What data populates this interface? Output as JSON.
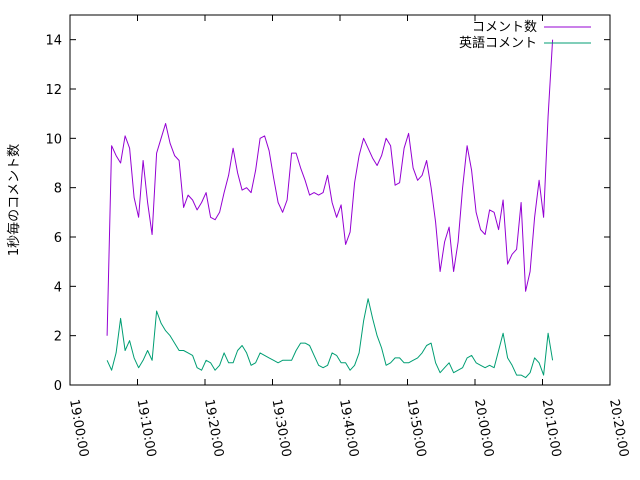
{
  "chart_data": {
    "type": "line",
    "title": "",
    "xlabel": "",
    "ylabel": "1秒毎のコメント数",
    "xlim": [
      "19:00:00",
      "20:20:00"
    ],
    "ylim": [
      0,
      15
    ],
    "x_ticks": [
      "19:00:00",
      "19:10:00",
      "19:20:00",
      "19:30:00",
      "19:40:00",
      "19:50:00",
      "20:00:00",
      "20:10:00",
      "20:20:00"
    ],
    "y_ticks": [
      0,
      2,
      4,
      6,
      8,
      10,
      12,
      14
    ],
    "grid": false,
    "legend_position": "top-right",
    "series": [
      {
        "name": "コメント数",
        "color": "#9400d3",
        "points": [
          [
            "19:05:30",
            2.0
          ],
          [
            "19:06:10",
            9.7
          ],
          [
            "19:06:50",
            9.3
          ],
          [
            "19:07:30",
            9.0
          ],
          [
            "19:08:10",
            10.1
          ],
          [
            "19:08:50",
            9.6
          ],
          [
            "19:09:30",
            7.6
          ],
          [
            "19:10:10",
            6.8
          ],
          [
            "19:10:50",
            9.1
          ],
          [
            "19:11:30",
            7.4
          ],
          [
            "19:12:10",
            6.1
          ],
          [
            "19:12:50",
            9.4
          ],
          [
            "19:13:30",
            10.0
          ],
          [
            "19:14:10",
            10.6
          ],
          [
            "19:14:50",
            9.8
          ],
          [
            "19:15:30",
            9.3
          ],
          [
            "19:16:10",
            9.1
          ],
          [
            "19:16:50",
            7.2
          ],
          [
            "19:17:30",
            7.7
          ],
          [
            "19:18:10",
            7.5
          ],
          [
            "19:18:50",
            7.1
          ],
          [
            "19:19:30",
            7.4
          ],
          [
            "19:20:10",
            7.8
          ],
          [
            "19:20:50",
            6.8
          ],
          [
            "19:21:30",
            6.7
          ],
          [
            "19:22:10",
            7.0
          ],
          [
            "19:22:50",
            7.8
          ],
          [
            "19:23:30",
            8.5
          ],
          [
            "19:24:10",
            9.6
          ],
          [
            "19:24:50",
            8.6
          ],
          [
            "19:25:30",
            7.9
          ],
          [
            "19:26:10",
            8.0
          ],
          [
            "19:26:50",
            7.8
          ],
          [
            "19:27:30",
            8.7
          ],
          [
            "19:28:10",
            10.0
          ],
          [
            "19:28:50",
            10.1
          ],
          [
            "19:29:30",
            9.5
          ],
          [
            "19:30:10",
            8.4
          ],
          [
            "19:30:50",
            7.4
          ],
          [
            "19:31:30",
            7.0
          ],
          [
            "19:32:10",
            7.5
          ],
          [
            "19:32:50",
            9.4
          ],
          [
            "19:33:30",
            9.4
          ],
          [
            "19:34:10",
            8.8
          ],
          [
            "19:34:50",
            8.3
          ],
          [
            "19:35:30",
            7.7
          ],
          [
            "19:36:10",
            7.8
          ],
          [
            "19:36:50",
            7.7
          ],
          [
            "19:37:30",
            7.8
          ],
          [
            "19:38:10",
            8.5
          ],
          [
            "19:38:50",
            7.4
          ],
          [
            "19:39:30",
            6.8
          ],
          [
            "19:40:10",
            7.3
          ],
          [
            "19:40:50",
            5.7
          ],
          [
            "19:41:30",
            6.2
          ],
          [
            "19:42:10",
            8.2
          ],
          [
            "19:42:50",
            9.3
          ],
          [
            "19:43:30",
            10.0
          ],
          [
            "19:44:10",
            9.6
          ],
          [
            "19:44:50",
            9.2
          ],
          [
            "19:45:30",
            8.9
          ],
          [
            "19:46:10",
            9.3
          ],
          [
            "19:46:50",
            10.0
          ],
          [
            "19:47:30",
            9.7
          ],
          [
            "19:48:10",
            8.1
          ],
          [
            "19:48:50",
            8.2
          ],
          [
            "19:49:30",
            9.6
          ],
          [
            "19:50:10",
            10.2
          ],
          [
            "19:50:50",
            8.8
          ],
          [
            "19:51:30",
            8.3
          ],
          [
            "19:52:10",
            8.5
          ],
          [
            "19:52:50",
            9.1
          ],
          [
            "19:53:30",
            8.0
          ],
          [
            "19:54:10",
            6.6
          ],
          [
            "19:54:50",
            4.6
          ],
          [
            "19:55:30",
            5.8
          ],
          [
            "19:56:10",
            6.4
          ],
          [
            "19:56:50",
            4.6
          ],
          [
            "19:57:30",
            5.8
          ],
          [
            "19:58:10",
            8.0
          ],
          [
            "19:58:50",
            9.7
          ],
          [
            "19:59:30",
            8.7
          ],
          [
            "20:00:10",
            7.0
          ],
          [
            "20:00:50",
            6.3
          ],
          [
            "20:01:30",
            6.1
          ],
          [
            "20:02:10",
            7.1
          ],
          [
            "20:02:50",
            7.0
          ],
          [
            "20:03:30",
            6.3
          ],
          [
            "20:04:10",
            7.5
          ],
          [
            "20:04:50",
            4.9
          ],
          [
            "20:05:30",
            5.3
          ],
          [
            "20:06:10",
            5.5
          ],
          [
            "20:06:50",
            7.4
          ],
          [
            "20:07:30",
            3.8
          ],
          [
            "20:08:10",
            4.6
          ],
          [
            "20:08:50",
            6.8
          ],
          [
            "20:09:30",
            8.3
          ],
          [
            "20:10:10",
            6.8
          ],
          [
            "20:10:50",
            10.9
          ],
          [
            "20:11:30",
            14.0
          ]
        ]
      },
      {
        "name": "英語コメント",
        "color": "#009e73",
        "points": [
          [
            "19:05:30",
            1.0
          ],
          [
            "19:06:10",
            0.6
          ],
          [
            "19:06:50",
            1.3
          ],
          [
            "19:07:30",
            2.7
          ],
          [
            "19:08:10",
            1.4
          ],
          [
            "19:08:50",
            1.8
          ],
          [
            "19:09:30",
            1.1
          ],
          [
            "19:10:10",
            0.7
          ],
          [
            "19:10:50",
            1.0
          ],
          [
            "19:11:30",
            1.4
          ],
          [
            "19:12:10",
            1.0
          ],
          [
            "19:12:50",
            3.0
          ],
          [
            "19:13:30",
            2.5
          ],
          [
            "19:14:10",
            2.2
          ],
          [
            "19:14:50",
            2.0
          ],
          [
            "19:15:30",
            1.7
          ],
          [
            "19:16:10",
            1.4
          ],
          [
            "19:16:50",
            1.4
          ],
          [
            "19:17:30",
            1.3
          ],
          [
            "19:18:10",
            1.2
          ],
          [
            "19:18:50",
            0.7
          ],
          [
            "19:19:30",
            0.6
          ],
          [
            "19:20:10",
            1.0
          ],
          [
            "19:20:50",
            0.9
          ],
          [
            "19:21:30",
            0.6
          ],
          [
            "19:22:10",
            0.8
          ],
          [
            "19:22:50",
            1.3
          ],
          [
            "19:23:30",
            0.9
          ],
          [
            "19:24:10",
            0.9
          ],
          [
            "19:24:50",
            1.4
          ],
          [
            "19:25:30",
            1.6
          ],
          [
            "19:26:10",
            1.3
          ],
          [
            "19:26:50",
            0.8
          ],
          [
            "19:27:30",
            0.9
          ],
          [
            "19:28:10",
            1.3
          ],
          [
            "19:28:50",
            1.2
          ],
          [
            "19:29:30",
            1.1
          ],
          [
            "19:30:10",
            1.0
          ],
          [
            "19:30:50",
            0.9
          ],
          [
            "19:31:30",
            1.0
          ],
          [
            "19:32:10",
            1.0
          ],
          [
            "19:32:50",
            1.0
          ],
          [
            "19:33:30",
            1.4
          ],
          [
            "19:34:10",
            1.7
          ],
          [
            "19:34:50",
            1.7
          ],
          [
            "19:35:30",
            1.6
          ],
          [
            "19:36:10",
            1.2
          ],
          [
            "19:36:50",
            0.8
          ],
          [
            "19:37:30",
            0.7
          ],
          [
            "19:38:10",
            0.8
          ],
          [
            "19:38:50",
            1.3
          ],
          [
            "19:39:30",
            1.2
          ],
          [
            "19:40:10",
            0.9
          ],
          [
            "19:40:50",
            0.9
          ],
          [
            "19:41:30",
            0.6
          ],
          [
            "19:42:10",
            0.8
          ],
          [
            "19:42:50",
            1.3
          ],
          [
            "19:43:30",
            2.6
          ],
          [
            "19:44:10",
            3.5
          ],
          [
            "19:44:50",
            2.7
          ],
          [
            "19:45:30",
            2.0
          ],
          [
            "19:46:10",
            1.5
          ],
          [
            "19:46:50",
            0.8
          ],
          [
            "19:47:30",
            0.9
          ],
          [
            "19:48:10",
            1.1
          ],
          [
            "19:48:50",
            1.1
          ],
          [
            "19:49:30",
            0.9
          ],
          [
            "19:50:10",
            0.9
          ],
          [
            "19:50:50",
            1.0
          ],
          [
            "19:51:30",
            1.1
          ],
          [
            "19:52:10",
            1.3
          ],
          [
            "19:52:50",
            1.6
          ],
          [
            "19:53:30",
            1.7
          ],
          [
            "19:54:10",
            0.9
          ],
          [
            "19:54:50",
            0.5
          ],
          [
            "19:55:30",
            0.7
          ],
          [
            "19:56:10",
            0.9
          ],
          [
            "19:56:50",
            0.5
          ],
          [
            "19:57:30",
            0.6
          ],
          [
            "19:58:10",
            0.7
          ],
          [
            "19:58:50",
            1.1
          ],
          [
            "19:59:30",
            1.2
          ],
          [
            "20:00:10",
            0.9
          ],
          [
            "20:00:50",
            0.8
          ],
          [
            "20:01:30",
            0.7
          ],
          [
            "20:02:10",
            0.8
          ],
          [
            "20:02:50",
            0.7
          ],
          [
            "20:03:30",
            1.4
          ],
          [
            "20:04:10",
            2.1
          ],
          [
            "20:04:50",
            1.1
          ],
          [
            "20:05:30",
            0.8
          ],
          [
            "20:06:10",
            0.4
          ],
          [
            "20:06:50",
            0.4
          ],
          [
            "20:07:30",
            0.3
          ],
          [
            "20:08:10",
            0.5
          ],
          [
            "20:08:50",
            1.1
          ],
          [
            "20:09:30",
            0.9
          ],
          [
            "20:10:10",
            0.4
          ],
          [
            "20:10:50",
            2.1
          ],
          [
            "20:11:30",
            1.0
          ]
        ]
      }
    ]
  }
}
